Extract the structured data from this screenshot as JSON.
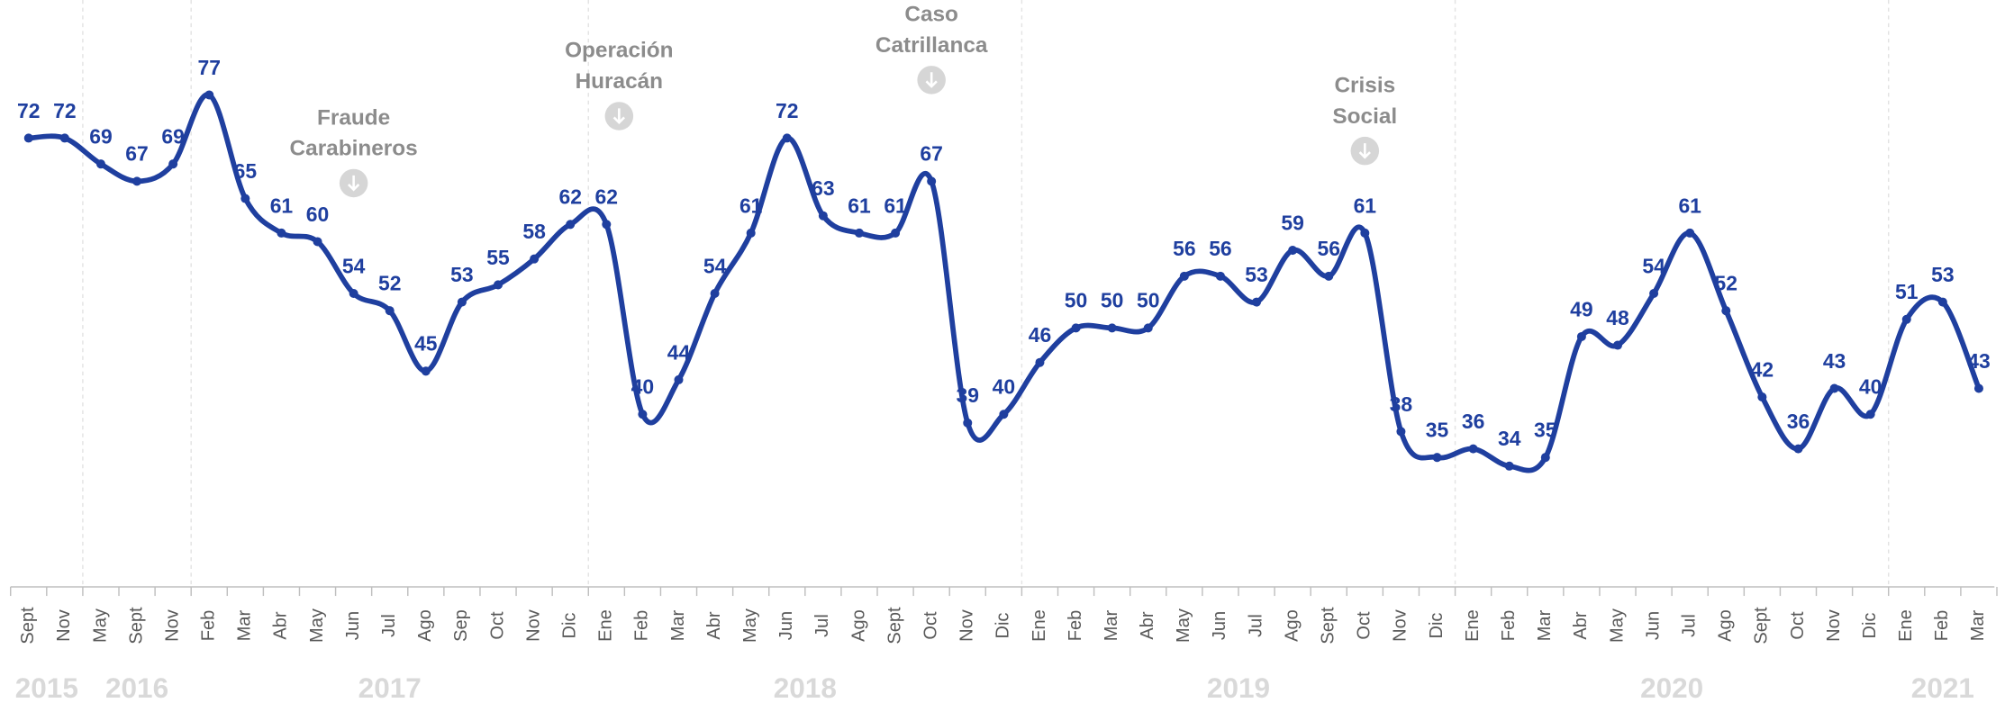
{
  "chart_data": {
    "type": "line",
    "color": "#1f3f9f",
    "ylim": [
      20,
      88
    ],
    "groups": [
      {
        "name": "2015",
        "categories": [
          "Sept",
          "Nov"
        ]
      },
      {
        "name": "2016",
        "categories": [
          "May",
          "Sept",
          "Nov"
        ]
      },
      {
        "name": "2017",
        "categories": [
          "Feb",
          "Mar",
          "Abr",
          "May",
          "Jun",
          "Jul",
          "Ago",
          "Sep",
          "Oct",
          "Nov",
          "Dic"
        ]
      },
      {
        "name": "2018",
        "categories": [
          "Ene",
          "Feb",
          "Mar",
          "Abr",
          "May",
          "Jun",
          "Jul",
          "Ago",
          "Sept",
          "Oct",
          "Nov",
          "Dic"
        ]
      },
      {
        "name": "2019",
        "categories": [
          "Ene",
          "Feb",
          "Mar",
          "Abr",
          "May",
          "Jun",
          "Jul",
          "Ago",
          "Sept",
          "Oct",
          "Nov",
          "Dic"
        ]
      },
      {
        "name": "2020",
        "categories": [
          "Ene",
          "Feb",
          "Mar",
          "Abr",
          "May",
          "Jun",
          "Jul",
          "Ago",
          "Sept",
          "Oct",
          "Nov",
          "Dic"
        ]
      },
      {
        "name": "2021",
        "categories": [
          "Ene",
          "Feb",
          "Mar"
        ]
      }
    ],
    "values": [
      72,
      72,
      69,
      67,
      69,
      77,
      65,
      61,
      60,
      54,
      52,
      45,
      53,
      55,
      58,
      62,
      62,
      40,
      44,
      54,
      61,
      72,
      63,
      61,
      61,
      67,
      39,
      40,
      46,
      50,
      50,
      50,
      56,
      56,
      53,
      59,
      56,
      61,
      38,
      35,
      36,
      34,
      35,
      49,
      48,
      54,
      61,
      52,
      42,
      36,
      43,
      40,
      51,
      53,
      43
    ],
    "annotations": [
      {
        "lines": [
          "Fraude",
          "Carabineros"
        ]
      },
      {
        "lines": [
          "Operación",
          "Huracán"
        ]
      },
      {
        "lines": [
          "Caso",
          "Catrillanca"
        ]
      },
      {
        "lines": [
          "Crisis",
          "Social"
        ]
      }
    ]
  }
}
